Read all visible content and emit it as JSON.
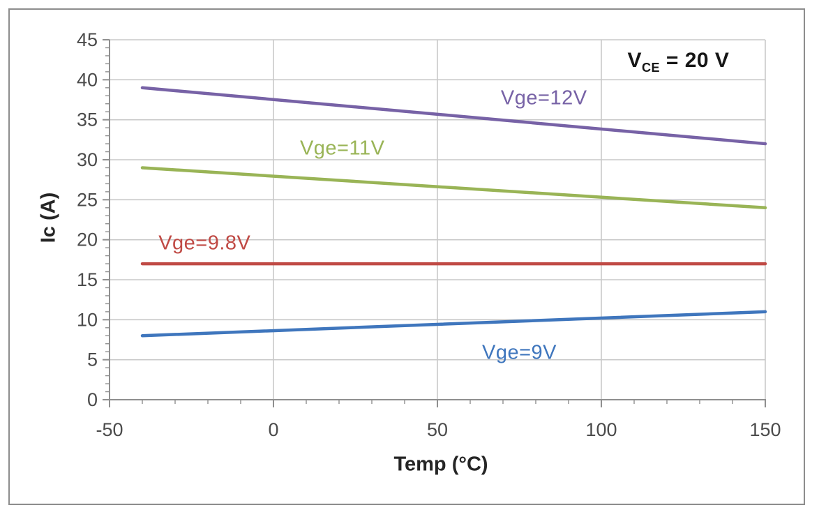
{
  "chart_data": {
    "type": "line",
    "title": "",
    "xlabel": "Temp (°C)",
    "ylabel": "Ic (A)",
    "xlim": [
      -50,
      150
    ],
    "ylim": [
      0,
      45
    ],
    "x_major_ticks": [
      -50,
      0,
      50,
      100,
      150
    ],
    "x_minor_step": 10,
    "y_major_step": 5,
    "y_minor_step": 1,
    "grid": "major-only",
    "legend": "none (inline series labels)",
    "annotation": {
      "base": "V",
      "sub": "CE",
      "rest": " = 20 V",
      "at": [
        123.5,
        42.2
      ]
    },
    "series": [
      {
        "name": "Vge=12V",
        "color": "#7762A6",
        "x": [
          -40,
          150
        ],
        "y": [
          39,
          32
        ],
        "label_at": [
          82.5,
          37.7
        ]
      },
      {
        "name": "Vge=11V",
        "color": "#99B456",
        "x": [
          -40,
          150
        ],
        "y": [
          29,
          24
        ],
        "label_at": [
          21,
          31.4
        ]
      },
      {
        "name": "Vge=9.8V",
        "color": "#C04A45",
        "x": [
          -40,
          150
        ],
        "y": [
          17,
          17
        ],
        "label_at": [
          -21,
          19.5
        ]
      },
      {
        "name": "Vge=9V",
        "color": "#3F76BD",
        "x": [
          -40,
          150
        ],
        "y": [
          8,
          11
        ],
        "label_at": [
          75,
          5.8
        ]
      }
    ],
    "style": {
      "grid_color": "#c9c9c9",
      "axis_color": "#8f8f8f",
      "tick_label_color": "#4b4b4b",
      "title_color": "#252525",
      "annotation_color": "#161616",
      "frame_color": "#8d8d8d",
      "background": "#ffffff",
      "line_width": 4.5
    }
  }
}
